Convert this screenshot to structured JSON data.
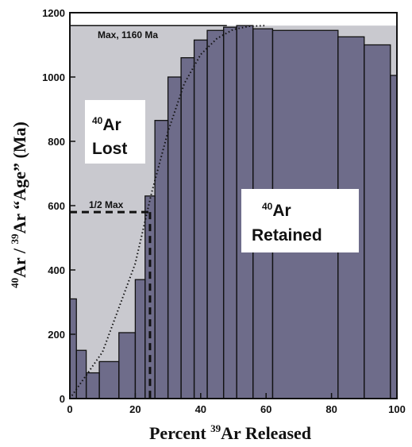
{
  "chart_data": {
    "type": "area",
    "xlabel": {
      "prefix": "Percent ",
      "sup": "39",
      "suffix": "Ar Released"
    },
    "ylabel": {
      "sup1": "40",
      "part1": "Ar / ",
      "sup2": "39",
      "part2": "Ar “Age” (Ma)"
    },
    "xlim": [
      0,
      100
    ],
    "ylim": [
      0,
      1200
    ],
    "x_ticks": [
      0,
      20,
      40,
      60,
      80,
      100
    ],
    "y_ticks": [
      0,
      200,
      400,
      600,
      800,
      1000,
      1200
    ],
    "grid": false,
    "colors": {
      "retained": "#6e6c8a",
      "lost": "#c9c9cf",
      "background": "#ffffff",
      "axis": "#111111"
    },
    "age_spectrum_steps": [
      {
        "x0": 0,
        "x1": 2,
        "age": 310
      },
      {
        "x0": 2,
        "x1": 5,
        "age": 150
      },
      {
        "x0": 5,
        "x1": 9,
        "age": 80
      },
      {
        "x0": 9,
        "x1": 15,
        "age": 115
      },
      {
        "x0": 15,
        "x1": 20,
        "age": 205
      },
      {
        "x0": 20,
        "x1": 23,
        "age": 370
      },
      {
        "x0": 23,
        "x1": 26,
        "age": 630
      },
      {
        "x0": 26,
        "x1": 30,
        "age": 865
      },
      {
        "x0": 30,
        "x1": 34,
        "age": 1000
      },
      {
        "x0": 34,
        "x1": 38,
        "age": 1060
      },
      {
        "x0": 38,
        "x1": 42,
        "age": 1115
      },
      {
        "x0": 42,
        "x1": 47,
        "age": 1145
      },
      {
        "x0": 47,
        "x1": 51,
        "age": 1155
      },
      {
        "x0": 51,
        "x1": 56,
        "age": 1160
      },
      {
        "x0": 56,
        "x1": 62,
        "age": 1150
      },
      {
        "x0": 62,
        "x1": 82,
        "age": 1145
      },
      {
        "x0": 82,
        "x1": 90,
        "age": 1125
      },
      {
        "x0": 90,
        "x1": 98,
        "age": 1100
      },
      {
        "x0": 98,
        "x1": 100,
        "age": 1005
      }
    ],
    "diffusion_model_curve": [
      [
        0,
        0
      ],
      [
        10,
        145
      ],
      [
        20,
        420
      ],
      [
        25,
        640
      ],
      [
        30,
        830
      ],
      [
        35,
        980
      ],
      [
        40,
        1070
      ],
      [
        45,
        1120
      ],
      [
        50,
        1148
      ],
      [
        55,
        1158
      ],
      [
        60,
        1160
      ]
    ],
    "max_line": {
      "age": 1160,
      "label": "Max, 1160 Ma"
    },
    "half_max": {
      "age": 580,
      "x": 24.5,
      "label": "1/2 Max"
    },
    "annotations": {
      "lost": {
        "sup": "40",
        "line1": "Ar",
        "line2": "Lost"
      },
      "retained": {
        "sup": "40",
        "line1": "Ar",
        "line2": "Retained"
      }
    }
  }
}
